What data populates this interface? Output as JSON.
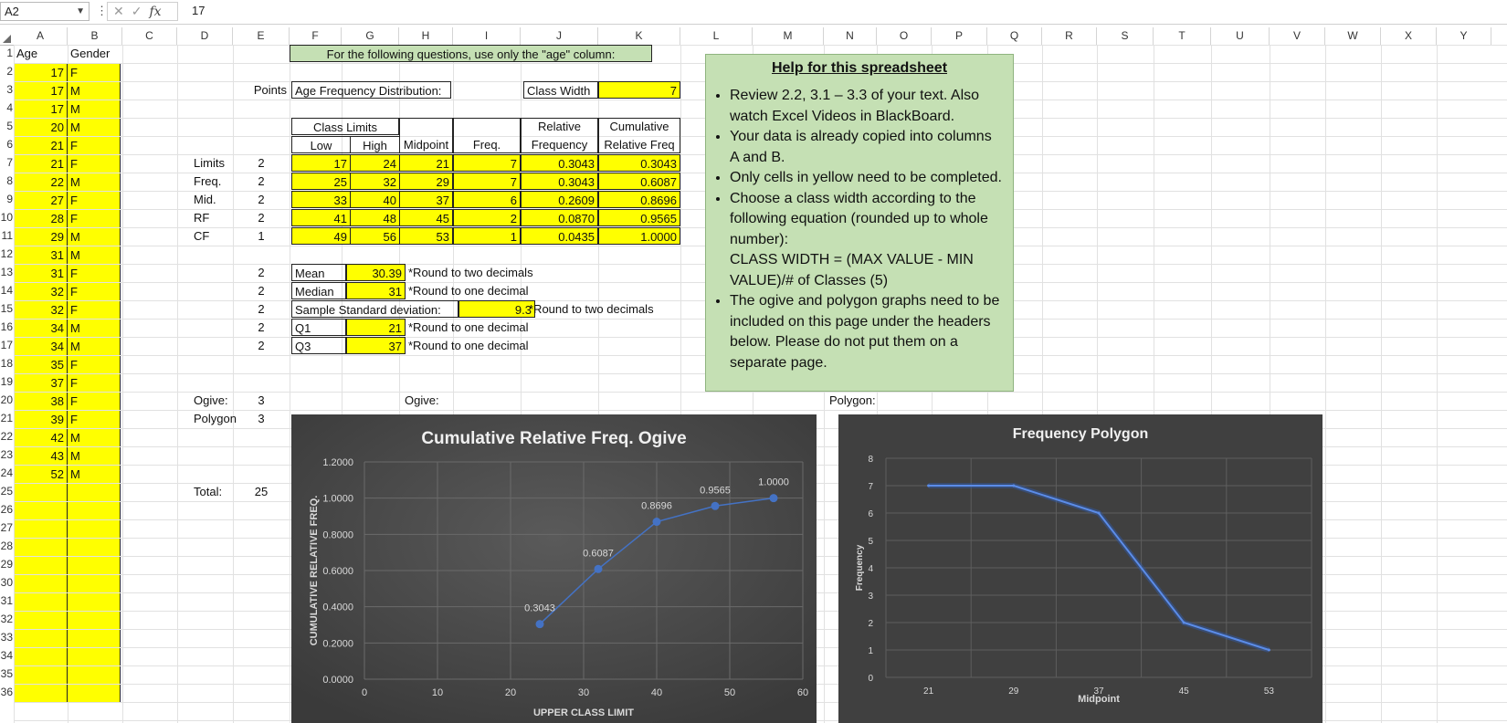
{
  "formula_bar": {
    "name_box": "A2",
    "formula": "17",
    "fx_label": "fx",
    "cancel_glyph": "✕",
    "enter_glyph": "✓",
    "dots": "⋮"
  },
  "columns": [
    "A",
    "B",
    "C",
    "D",
    "E",
    "F",
    "G",
    "H",
    "I",
    "J",
    "K",
    "L",
    "M",
    "N",
    "O",
    "P",
    "Q",
    "R",
    "S",
    "T",
    "U",
    "V",
    "W",
    "X",
    "Y"
  ],
  "rows": [
    "1",
    "2",
    "3",
    "4",
    "5",
    "6",
    "7",
    "8",
    "9",
    "10",
    "11",
    "12",
    "13",
    "14",
    "15",
    "16",
    "17",
    "18",
    "19",
    "20",
    "21",
    "22",
    "23",
    "24",
    "25",
    "26",
    "27",
    "28",
    "29",
    "30",
    "31",
    "32",
    "33",
    "34",
    "35",
    "36"
  ],
  "data_table": {
    "header_age": "Age",
    "header_gender": "Gender",
    "rows": [
      {
        "age": "17",
        "gender": "F"
      },
      {
        "age": "17",
        "gender": "M"
      },
      {
        "age": "17",
        "gender": "M"
      },
      {
        "age": "20",
        "gender": "M"
      },
      {
        "age": "21",
        "gender": "F"
      },
      {
        "age": "21",
        "gender": "F"
      },
      {
        "age": "22",
        "gender": "M"
      },
      {
        "age": "27",
        "gender": "F"
      },
      {
        "age": "28",
        "gender": "F"
      },
      {
        "age": "29",
        "gender": "M"
      },
      {
        "age": "31",
        "gender": "M"
      },
      {
        "age": "31",
        "gender": "F"
      },
      {
        "age": "32",
        "gender": "F"
      },
      {
        "age": "32",
        "gender": "F"
      },
      {
        "age": "34",
        "gender": "M"
      },
      {
        "age": "34",
        "gender": "M"
      },
      {
        "age": "35",
        "gender": "F"
      },
      {
        "age": "37",
        "gender": "F"
      },
      {
        "age": "38",
        "gender": "F"
      },
      {
        "age": "39",
        "gender": "F"
      },
      {
        "age": "42",
        "gender": "M"
      },
      {
        "age": "43",
        "gender": "M"
      },
      {
        "age": "52",
        "gender": "M"
      }
    ]
  },
  "instructions": "For the following questions, use only the \"age\" column:",
  "points_label": "Points",
  "age_freq_label": "Age Frequency Distribution:",
  "class_width_label": "Class Width",
  "class_width_value": "7",
  "freq_table": {
    "class_limits": "Class Limits",
    "low": "Low",
    "high": "High",
    "midpoint": "Midpoint",
    "freq": "Freq.",
    "relative": "Relative",
    "frequency": "Frequency",
    "cumulative": "Cumulative",
    "relative_freq": "Relative Freq",
    "rows": [
      {
        "low": "17",
        "high": "24",
        "mid": "21",
        "freq": "7",
        "rf": "0.3043",
        "cf": "0.3043"
      },
      {
        "low": "25",
        "high": "32",
        "mid": "29",
        "freq": "7",
        "rf": "0.3043",
        "cf": "0.6087"
      },
      {
        "low": "33",
        "high": "40",
        "mid": "37",
        "freq": "6",
        "rf": "0.2609",
        "cf": "0.8696"
      },
      {
        "low": "41",
        "high": "48",
        "mid": "45",
        "freq": "2",
        "rf": "0.0870",
        "cf": "0.9565"
      },
      {
        "low": "49",
        "high": "56",
        "mid": "53",
        "freq": "1",
        "rf": "0.0435",
        "cf": "1.0000"
      }
    ]
  },
  "point_rows": [
    {
      "label": "Limits",
      "points": "2"
    },
    {
      "label": "Freq.",
      "points": "2"
    },
    {
      "label": "Mid.",
      "points": "2"
    },
    {
      "label": "RF",
      "points": "2"
    },
    {
      "label": "CF",
      "points": "1"
    }
  ],
  "stats": [
    {
      "label": "Mean",
      "value": "30.39",
      "note": "*Round to two decimals",
      "points": "2"
    },
    {
      "label": "Median",
      "value": "31",
      "note": "*Round to one decimal",
      "points": "2"
    },
    {
      "label": "Sample Standard deviation:",
      "value": "9.3",
      "note": "*Round to two decimals",
      "points": "2"
    },
    {
      "label": "Q1",
      "value": "21",
      "note": "*Round to one decimal",
      "points": "2"
    },
    {
      "label": "Q3",
      "value": "37",
      "note": "*Round to one decimal",
      "points": "2"
    }
  ],
  "ogive_points_label": "Ogive:",
  "ogive_points": "3",
  "polygon_points_label": "Polygon",
  "polygon_points": "3",
  "total_label": "Total:",
  "total_value": "25",
  "ogive_header": "Ogive:",
  "polygon_header": "Polygon:",
  "help": {
    "title": "Help for this spreadsheet",
    "bullets": [
      "Review 2.2, 3.1 – 3.3 of your text. Also watch Excel Videos in BlackBoard.",
      "Your data is already copied into columns A and B.",
      "Only cells in yellow need to be completed.",
      "Choose a class width according to the following equation (rounded up to whole number):",
      "CLASS WIDTH = (MAX VALUE - MIN VALUE)/# of Classes (5)",
      "The ogive and polygon graphs need to be included on this page under the headers below. Please do not put them on a separate page."
    ]
  },
  "colors": {
    "yellow": "#ffff00",
    "green": "#c5e0b4",
    "chart_bg": "#404040",
    "series": "#4472c4"
  },
  "chart_data": [
    {
      "type": "line",
      "title": "Cumulative Relative Freq. Ogive",
      "xlabel": "UPPER CLASS LIMIT",
      "ylabel": "CUMULATIVE RELATIVE FREQ.",
      "x": [
        24,
        32,
        40,
        48,
        56
      ],
      "values": [
        0.3043,
        0.6087,
        0.8696,
        0.9565,
        1.0
      ],
      "data_labels": [
        "0.3043",
        "0.6087",
        "0.8696",
        "0.9565",
        "1.0000"
      ],
      "xlim": [
        0,
        60
      ],
      "ylim": [
        0,
        1.2
      ],
      "x_ticks": [
        "0",
        "10",
        "20",
        "30",
        "40",
        "50",
        "60"
      ],
      "y_ticks": [
        "0.0000",
        "0.2000",
        "0.4000",
        "0.6000",
        "0.8000",
        "1.0000",
        "1.2000"
      ],
      "grid": true
    },
    {
      "type": "line",
      "title": "Frequency Polygon",
      "xlabel": "Midpoint",
      "ylabel": "Frequency",
      "categories": [
        "21",
        "29",
        "37",
        "45",
        "53"
      ],
      "values": [
        7,
        7,
        6,
        2,
        1
      ],
      "ylim": [
        0,
        8
      ],
      "y_ticks": [
        "0",
        "1",
        "2",
        "3",
        "4",
        "5",
        "6",
        "7",
        "8"
      ],
      "grid": true
    }
  ]
}
